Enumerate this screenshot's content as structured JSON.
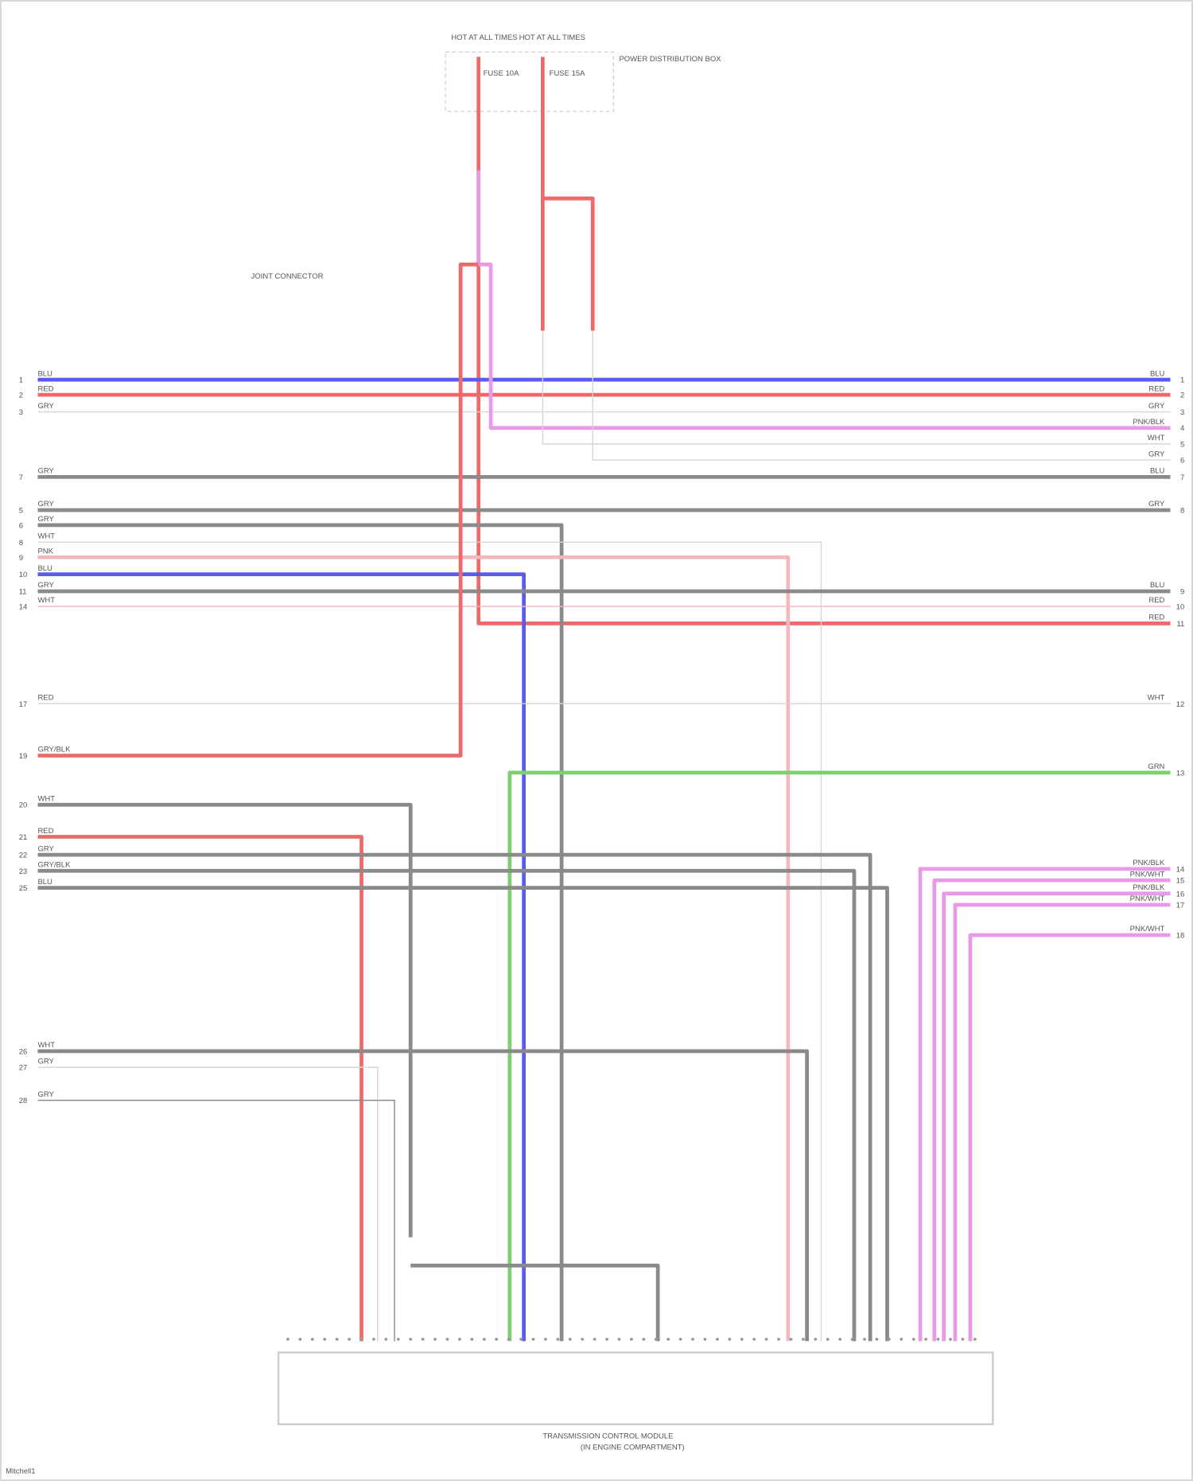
{
  "colors": {
    "blue": "#5b5bf0",
    "red": "#ee6a6a",
    "pink": "#e89ae8",
    "gray": "#8a8a8a",
    "lightgray": "#d6d6d6",
    "green": "#7fcf70",
    "lightpink": "#f2b8c0"
  },
  "top": {
    "feed_left": "HOT AT ALL TIMES",
    "feed_right": "HOT AT ALL TIMES",
    "fuse_left": "FUSE 10A",
    "fuse_right": "FUSE 15A",
    "box_label": "POWER DISTRIBUTION BOX"
  },
  "splice_label": "JOINT CONNECTOR",
  "left_pins": [
    "1",
    "2",
    "3",
    "7",
    "5",
    "6",
    "8",
    "9",
    "10",
    "11",
    "14",
    "17",
    "19",
    "20",
    "21",
    "22",
    "23",
    "25",
    "26",
    "27",
    "28"
  ],
  "left_wires": [
    "BLU",
    "RED",
    "GRY",
    "GRY",
    "GRY",
    "GRY",
    "WHT",
    "PNK",
    "BLU",
    "GRY",
    "WHT",
    "RED",
    "GRY/BLK",
    "WHT",
    "RED",
    "GRY",
    "GRY/BLK",
    "BLU",
    "WHT",
    "GRY",
    "GRY"
  ],
  "right_pins": [
    "1",
    "2",
    "3",
    "4",
    "5",
    "6",
    "7",
    "8",
    "9",
    "10",
    "11",
    "12",
    "13",
    "14",
    "15",
    "16",
    "17",
    "18"
  ],
  "right_wires": [
    "BLU",
    "RED",
    "GRY",
    "PNK/BLK",
    "WHT",
    "GRY",
    "BLU",
    "GRY",
    "BLU",
    "RED",
    "RED",
    "WHT",
    "GRN",
    "PNK/BLK",
    "PNK/WHT",
    "PNK/BLK",
    "PNK/WHT",
    "PNK/WHT"
  ],
  "module": {
    "label_line1": "TRANSMISSION CONTROL MODULE",
    "label_line2": "(IN ENGINE COMPARTMENT)"
  },
  "footer": "Mitchell1"
}
